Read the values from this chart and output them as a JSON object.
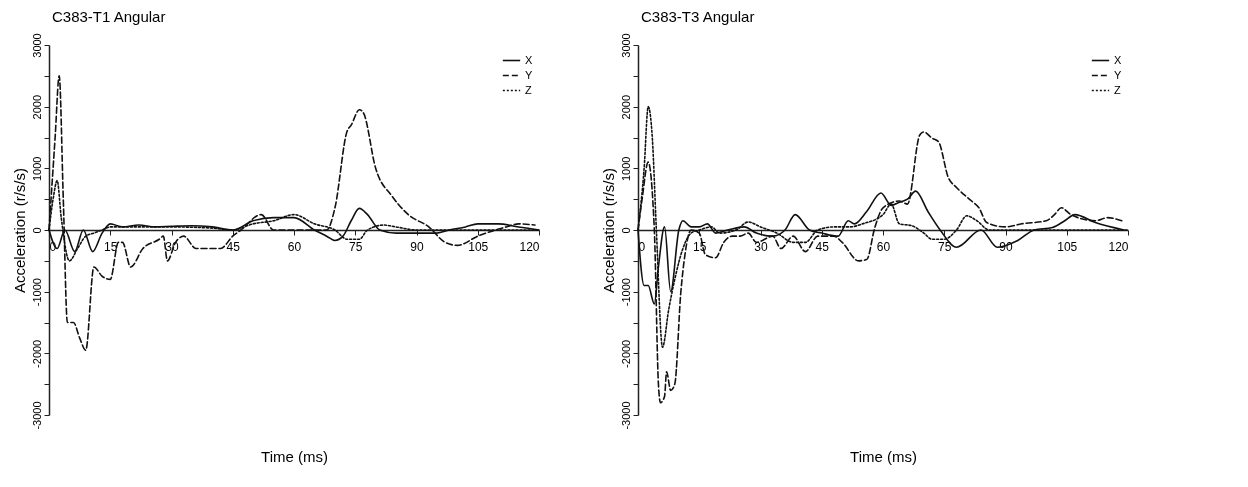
{
  "chart_data": [
    {
      "type": "line",
      "title": "C383-T1 Angular",
      "xlabel": "Time (ms)",
      "ylabel": "Acceleration (r/s/s)",
      "xlim": [
        0,
        120
      ],
      "xticks": [
        0,
        15,
        30,
        45,
        60,
        75,
        90,
        105,
        120
      ],
      "ylim": [
        -3000,
        3000
      ],
      "yticks": [
        -3000,
        {
          "value": -2500,
          "label": null
        },
        -2000,
        {
          "value": -1500,
          "label": null
        },
        -1000,
        {
          "value": -500,
          "label": null
        },
        0,
        {
          "value": 500,
          "label": null
        },
        1000,
        {
          "value": 1500,
          "label": null
        },
        2000,
        {
          "value": 2500,
          "label": null
        },
        3000
      ],
      "grid": false,
      "legend": "top right",
      "series": [
        {
          "name": "X",
          "color": "#111111",
          "line_style": "solid",
          "x": [
            0,
            2,
            3.9,
            6.3,
            8.4,
            10.7,
            13,
            15,
            18,
            22,
            26,
            30,
            35,
            40,
            45,
            50,
            55,
            60,
            65,
            68,
            70,
            72,
            74,
            76,
            78,
            81,
            85,
            90,
            95,
            98,
            102,
            105,
            110,
            115,
            120
          ],
          "values": [
            0,
            -300,
            0,
            -350,
            0,
            -350,
            -50,
            100,
            50,
            80,
            50,
            60,
            70,
            50,
            0,
            150,
            200,
            200,
            0,
            -100,
            -170,
            -100,
            150,
            350,
            250,
            0,
            -50,
            -50,
            -50,
            0,
            50,
            100,
            100,
            50,
            0
          ]
        },
        {
          "name": "Y",
          "color": "#111111",
          "line_style": "dashed",
          "x": [
            0,
            1.5,
            2.5,
            3.5,
            4.5,
            6,
            7.5,
            9,
            11,
            13,
            15,
            17,
            18,
            20,
            23,
            27,
            28,
            29,
            31,
            33,
            36,
            42,
            45,
            47,
            52,
            55,
            60,
            65,
            68,
            70,
            73,
            74,
            76,
            77,
            80,
            84,
            88,
            93,
            97,
            100,
            105,
            112,
            115,
            119
          ],
          "values": [
            0,
            1500,
            2500,
            500,
            -1500,
            -1500,
            -1750,
            -1950,
            -600,
            -750,
            -800,
            -200,
            -200,
            -600,
            -300,
            -150,
            -100,
            -500,
            -200,
            -100,
            -300,
            -300,
            -100,
            0,
            250,
            0,
            0,
            0,
            0,
            350,
            1600,
            1700,
            1950,
            1900,
            1000,
            550,
            250,
            50,
            -200,
            -250,
            -100,
            50,
            100,
            80
          ]
        },
        {
          "name": "Z",
          "color": "#111111",
          "line_style": "dotted",
          "x": [
            0,
            1,
            2,
            3,
            5,
            7,
            9,
            11,
            13,
            15,
            20,
            30,
            40,
            45,
            50,
            55,
            60,
            65,
            70,
            73,
            76,
            78,
            82,
            85,
            90,
            100,
            110,
            120
          ],
          "values": [
            0,
            500,
            800,
            200,
            -500,
            -300,
            -100,
            -50,
            0,
            50,
            50,
            50,
            30,
            0,
            100,
            150,
            250,
            100,
            0,
            -150,
            -150,
            0,
            80,
            50,
            0,
            0,
            0,
            0
          ]
        }
      ]
    },
    {
      "type": "line",
      "title": "C383-T3 Angular",
      "xlabel": "Time (ms)",
      "ylabel": "Acceleration (r/s/s)",
      "xlim": [
        0,
        120
      ],
      "xticks": [
        0,
        15,
        30,
        45,
        60,
        75,
        90,
        105,
        120
      ],
      "ylim": [
        -3000,
        3000
      ],
      "yticks": [
        -3000,
        {
          "value": -2500,
          "label": null
        },
        -2000,
        {
          "value": -1500,
          "label": null
        },
        -1000,
        {
          "value": -500,
          "label": null
        },
        0,
        {
          "value": 500,
          "label": null
        },
        1000,
        {
          "value": 1500,
          "label": null
        },
        2000,
        {
          "value": 2500,
          "label": null
        },
        3000
      ],
      "grid": false,
      "legend": "top right",
      "series": [
        {
          "name": "X",
          "color": "#111111",
          "line_style": "solid",
          "x": [
            0,
            1.5,
            2.5,
            4,
            5,
            6.5,
            8,
            10,
            11,
            13,
            15,
            17,
            19,
            22,
            26,
            29,
            33,
            36,
            38.5,
            42,
            45,
            49,
            51.5,
            53,
            56,
            59.5,
            62,
            64,
            66,
            68,
            71,
            74,
            78,
            84,
            88,
            93,
            97,
            101.5,
            104.5,
            107,
            112,
            119
          ],
          "values": [
            0,
            -900,
            -900,
            -1200,
            -600,
            50,
            -1000,
            0,
            150,
            50,
            50,
            100,
            -50,
            0,
            50,
            -50,
            -100,
            0,
            250,
            0,
            -50,
            -100,
            150,
            100,
            300,
            600,
            400,
            450,
            500,
            630,
            300,
            0,
            -280,
            0,
            -280,
            -170,
            0,
            40,
            150,
            250,
            120,
            0
          ]
        },
        {
          "name": "Y",
          "color": "#111111",
          "line_style": "dashed",
          "x": [
            0,
            1,
            2.5,
            4,
            5,
            5.5,
            6.5,
            7,
            8,
            9,
            10.5,
            11.5,
            13,
            15,
            16.5,
            19,
            21,
            23,
            25,
            27,
            29,
            33,
            35,
            38,
            41,
            44,
            48,
            50,
            54,
            56,
            58,
            60,
            64,
            66,
            69,
            70,
            72,
            73.6,
            76,
            78,
            81.7,
            83.5,
            85.4,
            90,
            94,
            100,
            102,
            103.7,
            106,
            112,
            115,
            118.5
          ],
          "values": [
            0,
            500,
            1100,
            0,
            -2500,
            -2800,
            -2700,
            -2300,
            -2600,
            -2500,
            -1000,
            -400,
            0,
            -50,
            -400,
            -450,
            -200,
            -100,
            -100,
            -50,
            -200,
            -100,
            -300,
            -100,
            -350,
            -100,
            -100,
            -200,
            -500,
            -480,
            40,
            360,
            470,
            420,
            1540,
            1590,
            1490,
            1430,
            850,
            690,
            470,
            360,
            120,
            50,
            100,
            150,
            250,
            360,
            250,
            150,
            200,
            150
          ]
        },
        {
          "name": "Z",
          "color": "#111111",
          "line_style": "dotted",
          "x": [
            0,
            1.5,
            2.5,
            3.5,
            4.5,
            6,
            7.5,
            9,
            11,
            13,
            15,
            18,
            20,
            24,
            27,
            30,
            34,
            38,
            41,
            44,
            48,
            52,
            55,
            60,
            62,
            64,
            67,
            70,
            72,
            75,
            78,
            80.5,
            83,
            86,
            90,
            100,
            110,
            120
          ],
          "values": [
            0,
            1000,
            2000,
            1500,
            0,
            -1900,
            -1300,
            -800,
            -300,
            -50,
            0,
            50,
            -50,
            0,
            130,
            50,
            -50,
            -200,
            -200,
            0,
            50,
            50,
            100,
            250,
            420,
            100,
            70,
            -50,
            -150,
            -150,
            0,
            230,
            150,
            0,
            0,
            0,
            0,
            0
          ]
        }
      ]
    }
  ]
}
